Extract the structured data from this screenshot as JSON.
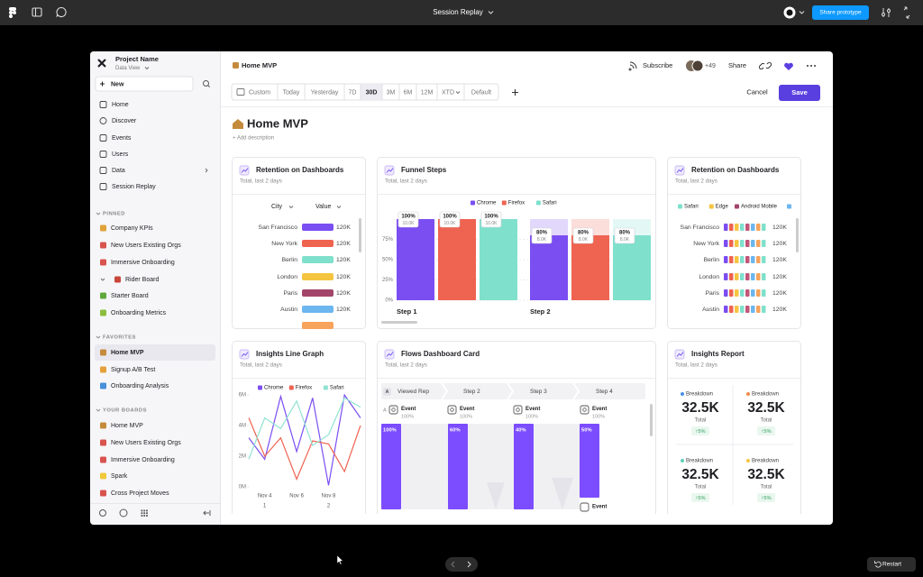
{
  "topbar": {
    "title": "Session Replay",
    "share_button": "Share prototype",
    "restart": "Restart"
  },
  "sidebar": {
    "project_name": "Project Name",
    "project_view": "Data View",
    "new_button": "New",
    "nav": [
      "Home",
      "Discover",
      "Events",
      "Users",
      "Data",
      "Session Replay"
    ],
    "sections": [
      {
        "label": "PINNED",
        "items": [
          "Company KPIs",
          "New Users Existing Orgs",
          "Immersive Onboarding",
          "Rider Board",
          "Starter Board",
          "Onboarding Metrics"
        ]
      },
      {
        "label": "FAVORITES",
        "items": [
          "Home MVP",
          "Signup A/B Test",
          "Onboarding Analysis"
        ]
      },
      {
        "label": "YOUR BOARDS",
        "items": [
          "Home MVP",
          "New Users Existing Orgs",
          "Immersive Onboarding",
          "Spark",
          "Cross Project Moves"
        ]
      }
    ]
  },
  "header": {
    "breadcrumb": "Home MVP",
    "subscribe": "Subscribe",
    "avatar_count": "+49",
    "share": "Share"
  },
  "toolbar": {
    "ranges": [
      "Custom",
      "Today",
      "Yesterday",
      "7D",
      "30D",
      "3M",
      "6M",
      "12M",
      "XTD",
      "Default"
    ],
    "selected_index": 4,
    "cancel": "Cancel",
    "save": "Save"
  },
  "page": {
    "title": "Home MVP",
    "add_description": "+ Add description"
  },
  "cards": [
    {
      "title": "Retention on Dashboards",
      "subtitle": "Total, last 2 days",
      "columns": [
        "City",
        "Value"
      ],
      "rows": [
        {
          "city": "San Francisco",
          "value": 120000,
          "value_label": "120K",
          "color": "#7b4ef2"
        },
        {
          "city": "New York",
          "value": 120000,
          "value_label": "120K",
          "color": "#ef6351"
        },
        {
          "city": "Berlin",
          "value": 120000,
          "value_label": "120K",
          "color": "#7fe0cc"
        },
        {
          "city": "London",
          "value": 120000,
          "value_label": "120K",
          "color": "#f5c542"
        },
        {
          "city": "Paris",
          "value": 120000,
          "value_label": "120K",
          "color": "#a3456b"
        },
        {
          "city": "Austin",
          "value": 120000,
          "value_label": "120K",
          "color": "#6cb6ef"
        }
      ]
    },
    {
      "type": "funnel",
      "title": "Funnel Steps",
      "subtitle": "Total, last 2 days",
      "steps": [
        "Step 1",
        "Step 2"
      ],
      "ylim": [
        0,
        100
      ],
      "yticks": [
        {
          "value": 0,
          "label": "0%"
        },
        {
          "value": 25,
          "label": "25%"
        },
        {
          "value": 50,
          "label": "50%"
        },
        {
          "value": 75,
          "label": "75%"
        }
      ],
      "series": [
        {
          "name": "Chrome",
          "color": "#7b4ef2",
          "values": [
            100,
            80
          ],
          "value_labels": [
            "100%",
            "80%"
          ],
          "count_labels": [
            "10.0K",
            "8.0K"
          ]
        },
        {
          "name": "Firefox",
          "color": "#ef6351",
          "values": [
            100,
            80
          ],
          "value_labels": [
            "100%",
            "80%"
          ],
          "count_labels": [
            "10.0K",
            "8.0K"
          ]
        },
        {
          "name": "Safari",
          "color": "#7fe0cc",
          "values": [
            100,
            80
          ],
          "value_labels": [
            "100%",
            "80%"
          ],
          "count_labels": [
            "10.0K",
            "8.0K"
          ]
        }
      ]
    },
    {
      "title": "Retention on Dashboards",
      "subtitle": "Total, last 2 days",
      "legend": [
        {
          "name": "Safari",
          "color": "#7fe0cc"
        },
        {
          "name": "Edge",
          "color": "#f5c542"
        },
        {
          "name": "Android Mobile",
          "color": "#a3456b"
        }
      ],
      "rows": [
        {
          "city": "San Francisco",
          "value": "120K"
        },
        {
          "city": "New York",
          "value": "120K"
        },
        {
          "city": "Berlin",
          "value": "120K"
        },
        {
          "city": "London",
          "value": "120K"
        },
        {
          "city": "Paris",
          "value": "120K"
        },
        {
          "city": "Austin",
          "value": "120K"
        }
      ]
    },
    {
      "type": "line",
      "title": "Insights Line Graph",
      "subtitle": "Total, last 2 days",
      "categories": [
        null,
        "Nov 4",
        null,
        "Nov 6",
        null,
        "Nov 8",
        null,
        null
      ],
      "category_sublabels": [
        null,
        "1",
        null,
        null,
        null,
        "2",
        null,
        null
      ],
      "ylim": [
        0,
        6
      ],
      "yticks": [
        {
          "value": 0,
          "label": "0M"
        },
        {
          "value": 2,
          "label": "2M"
        },
        {
          "value": 4,
          "label": "4M"
        },
        {
          "value": 6,
          "label": "6M"
        }
      ],
      "series": [
        {
          "name": "Chrome",
          "color": "#7b4ef2",
          "values": [
            3.2,
            1.8,
            5.9,
            2.3,
            5.8,
            0.1,
            6.0,
            4.5
          ]
        },
        {
          "name": "Firefox",
          "color": "#ef6351",
          "values": [
            4.5,
            2.0,
            3.2,
            0.5,
            3.0,
            2.8,
            1.0,
            4.0
          ]
        },
        {
          "name": "Safari",
          "color": "#8fe3d2",
          "values": [
            1.8,
            4.5,
            3.8,
            5.6,
            2.7,
            3.4,
            5.8,
            5.2
          ]
        }
      ]
    },
    {
      "title": "Flows Dashboard Card",
      "subtitle": "Total, last 2 days",
      "path_label": "A",
      "steps": [
        "Viewed Rep",
        "Step 2",
        "Step 3",
        "Step 4"
      ],
      "nodes": [
        {
          "event": "Event",
          "share": "100%",
          "bar_label": "100%"
        },
        {
          "event": "Event",
          "share": "100%",
          "bar_label": "60%"
        },
        {
          "event": "Event",
          "share": "100%",
          "bar_label": "40%"
        },
        {
          "event": "Event",
          "share": "100%",
          "bar_label": "50%"
        }
      ],
      "next_event": "Event"
    },
    {
      "title": "Insights Report",
      "subtitle": "Total, last 2 days",
      "tiles": [
        {
          "label": "Breakdown",
          "value": "32.5K",
          "metric": "Total",
          "change": "↑5%",
          "color": "#4a90e2"
        },
        {
          "label": "Breakdown",
          "value": "32.5K",
          "metric": "Total",
          "change": "↑5%",
          "color": "#f08a4b"
        },
        {
          "label": "Breakdown",
          "value": "32.5K",
          "metric": "Total",
          "change": "↑5%",
          "color": "#5fd0b8"
        },
        {
          "label": "Breakdown",
          "value": "32.5K",
          "metric": "Total",
          "change": "↑5%",
          "color": "#f5c542"
        }
      ]
    }
  ]
}
